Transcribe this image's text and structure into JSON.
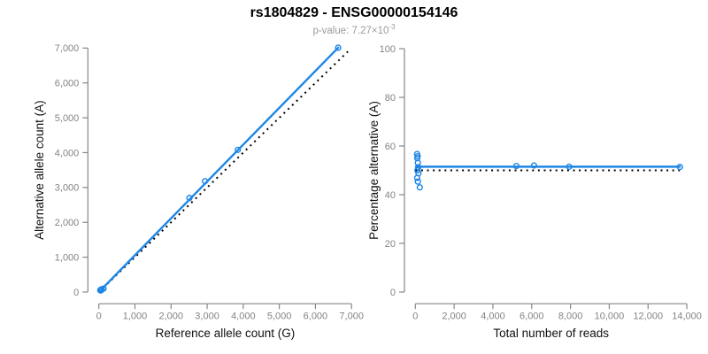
{
  "header": {
    "title": "rs1804829 - ENSG00000154146",
    "pvalue_prefix": "p-value: 7.27×10",
    "pvalue_exponent": "-3"
  },
  "colors": {
    "accent_blue": "#1e86e5",
    "identity_line": "#000000",
    "axis_line": "#878787",
    "tick_label": "#838383",
    "axis_title": "#111111",
    "subtitle_gray": "#9b9b9b"
  },
  "chart_data": {
    "type": "scatter",
    "title": "rs1804829 - ENSG00000154146",
    "subtitle": "p-value: 7.27×10^-3",
    "panels": [
      {
        "id": "alt-vs-ref-counts",
        "xlabel": "Reference allele count (G)",
        "ylabel": "Alternative allele count (A)",
        "xlim": [
          0,
          7000
        ],
        "ylim": [
          0,
          7000
        ],
        "xticks": {
          "values": [
            0,
            1000,
            2000,
            3000,
            4000,
            5000,
            6000,
            7000
          ],
          "labels": [
            "0",
            "1,000",
            "2,000",
            "3,000",
            "4,000",
            "5,000",
            "6,000",
            "7,000"
          ]
        },
        "yticks": {
          "values": [
            0,
            1000,
            2000,
            3000,
            4000,
            5000,
            6000,
            7000
          ],
          "labels": [
            "0",
            "1,000",
            "2,000",
            "3,000",
            "4,000",
            "5,000",
            "6,000",
            "7,000"
          ]
        },
        "lines": [
          {
            "name": "identity-line",
            "style": "dotted",
            "from": [
              0,
              0
            ],
            "to": [
              6900,
              6900
            ]
          },
          {
            "name": "fit-line",
            "style": "solid",
            "from": [
              40,
              42
            ],
            "to": [
              6630,
              7010
            ]
          }
        ],
        "points": [
          [
            39,
            51
          ],
          [
            53,
            67
          ],
          [
            45,
            55
          ],
          [
            61,
            69
          ],
          [
            73,
            77
          ],
          [
            55,
            55
          ],
          [
            82,
            78
          ],
          [
            51,
            45
          ],
          [
            71,
            59
          ],
          [
            131,
            99
          ],
          [
            2510,
            2700
          ],
          [
            2940,
            3180
          ],
          [
            3850,
            4080
          ],
          [
            6630,
            7010
          ]
        ]
      },
      {
        "id": "pct-alt-vs-total-reads",
        "xlabel": "Total number of reads",
        "ylabel": "Percentage alternative (A)",
        "xlim": [
          0,
          14000
        ],
        "ylim": [
          0,
          100
        ],
        "xticks": {
          "values": [
            0,
            2000,
            4000,
            6000,
            8000,
            10000,
            12000,
            14000
          ],
          "labels": [
            "0",
            "2,000",
            "4,000",
            "6,000",
            "8,000",
            "10,000",
            "12,000",
            "14,000"
          ]
        },
        "yticks": {
          "values": [
            0,
            20,
            40,
            60,
            80,
            100
          ],
          "labels": [
            "0",
            "20",
            "40",
            "60",
            "80",
            "100"
          ]
        },
        "lines": [
          {
            "name": "fifty-percent-line",
            "style": "dotted",
            "from": [
              0,
              50
            ],
            "to": [
              13640,
              50
            ]
          },
          {
            "name": "fit-line",
            "style": "solid",
            "from": [
              30,
              51.5
            ],
            "to": [
              13640,
              51.5
            ]
          }
        ],
        "points": [
          [
            90,
            56.7
          ],
          [
            120,
            55.8
          ],
          [
            100,
            55.0
          ],
          [
            130,
            53.1
          ],
          [
            150,
            51.3
          ],
          [
            110,
            50.0
          ],
          [
            160,
            48.8
          ],
          [
            96,
            46.9
          ],
          [
            130,
            45.4
          ],
          [
            230,
            43.0
          ],
          [
            5210,
            51.8
          ],
          [
            6120,
            52.0
          ],
          [
            7930,
            51.5
          ],
          [
            13640,
            51.4
          ]
        ]
      }
    ]
  }
}
